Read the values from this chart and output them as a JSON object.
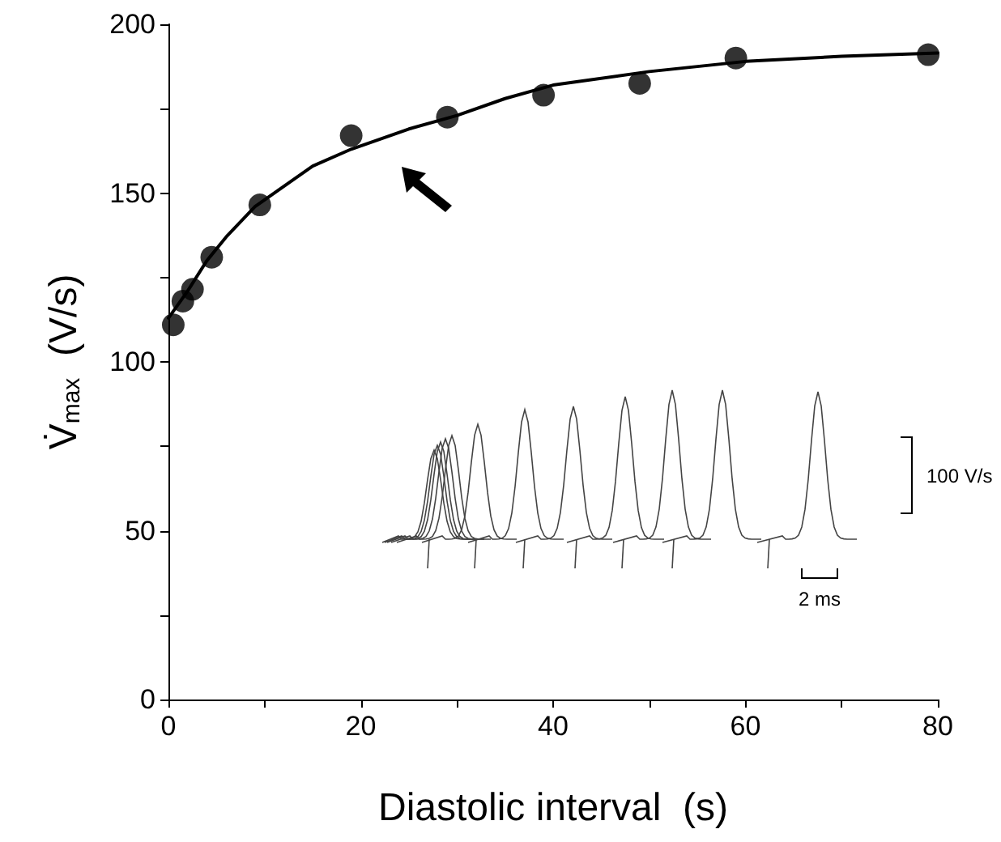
{
  "chart_data": {
    "type": "scatter",
    "xlabel": "Diastolic interval  (s)",
    "ylabel": "V̇$_{max}$  (V/s)",
    "xlim": [
      0,
      80
    ],
    "xticks": [
      0,
      {
        "value": 10,
        "label": null
      },
      20,
      {
        "value": 30,
        "label": null
      },
      40,
      {
        "value": 50,
        "label": null
      },
      60,
      {
        "value": 70,
        "label": null
      },
      80
    ],
    "ylim": [
      0,
      200
    ],
    "yticks": [
      0,
      {
        "value": 25,
        "label": null
      },
      50,
      {
        "value": 75,
        "label": null
      },
      100,
      {
        "value": 125,
        "label": null
      },
      150,
      {
        "value": 175,
        "label": null
      },
      200
    ],
    "annotations": [
      "100 V/s",
      "2 ms"
    ],
    "series": [
      {
        "color": "#000000",
        "marker": "circle",
        "x": [
          0.5,
          1.5,
          2.5,
          4.5,
          9.5,
          19,
          29,
          39,
          49,
          59,
          79
        ],
        "values": [
          111,
          118,
          121.5,
          131,
          146.5,
          167,
          172.5,
          179,
          182.5,
          190,
          191
        ]
      },
      {
        "type": "line",
        "color": "#000000",
        "marker": "none",
        "line_style": "solid",
        "x": [
          0,
          2,
          4,
          6,
          9,
          12,
          15,
          19,
          25,
          30,
          35,
          40,
          50,
          60,
          70,
          80
        ],
        "values": [
          113,
          121,
          130,
          137,
          146,
          152,
          158,
          163,
          169,
          173,
          178,
          182,
          186,
          189,
          190.5,
          191.5
        ]
      }
    ]
  }
}
